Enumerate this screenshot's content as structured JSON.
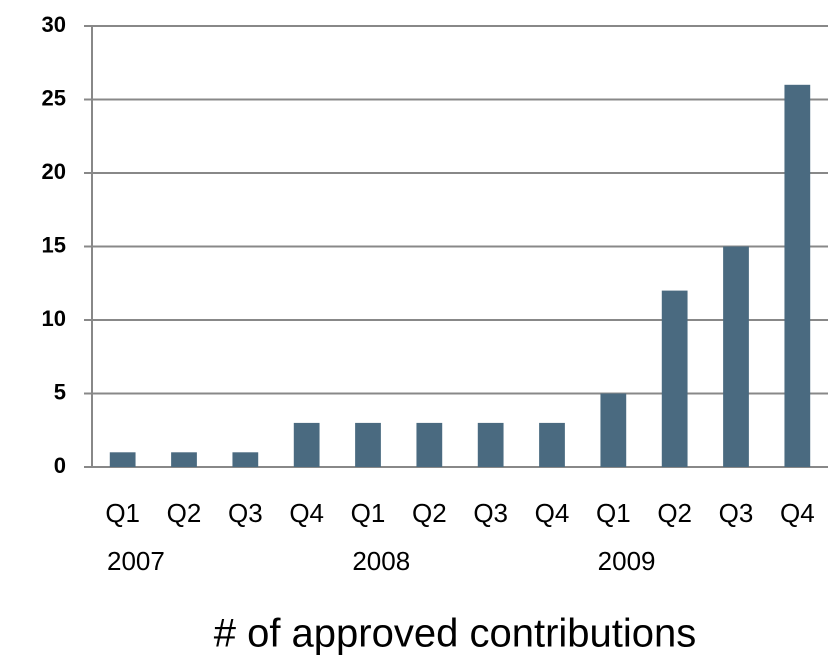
{
  "chart_data": {
    "type": "bar",
    "x_label": "# of approved contributions",
    "categories": [
      "Q1",
      "Q2",
      "Q3",
      "Q4",
      "Q1",
      "Q2",
      "Q3",
      "Q4",
      "Q1",
      "Q2",
      "Q3",
      "Q4"
    ],
    "category_groups": [
      "2007",
      "2008",
      "2009"
    ],
    "values": [
      1,
      1,
      1,
      3,
      3,
      3,
      3,
      3,
      5,
      12,
      15,
      26
    ],
    "color": "#4a6a80",
    "ylim": [
      0,
      30
    ],
    "yticks": [
      0,
      5,
      10,
      15,
      20,
      25,
      30
    ],
    "grid": true
  }
}
